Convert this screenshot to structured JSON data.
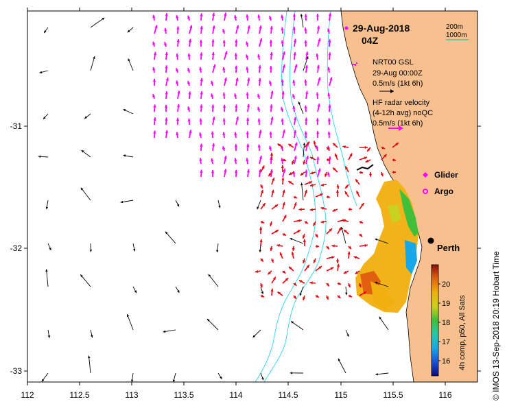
{
  "map": {
    "date": "29-Aug-2018",
    "time": "04Z",
    "scale_bar": {
      "short": "200m",
      "long": "1000m"
    },
    "legend": {
      "model_name": "NRT00 GSL",
      "model_time": "29-Aug 00:00Z",
      "model_scale": "0.5m/s (1kt 6h)",
      "radar_line1": "HF radar velocity",
      "radar_line2": "(4-12h avg) noQC",
      "radar_scale": "0.5m/s (1kt 6h)",
      "glider": "Glider",
      "argo": "Argo"
    },
    "city": "Perth",
    "credit": "© IMOS 13-Sep-2018 20:19 Hobart Time",
    "colorbar": {
      "title": "4h comp, p50, All Sats",
      "ticks": [
        "20",
        "19",
        "18",
        "17",
        "16"
      ]
    },
    "x_ticks": [
      "112",
      "112.5",
      "113",
      "113.5",
      "114",
      "114.5",
      "115",
      "115.5",
      "116"
    ],
    "y_ticks": [
      "-31",
      "-32",
      "-33"
    ],
    "colors": {
      "land": "#f7c08e",
      "model_arrow": "#000000",
      "radar_arrow": "#ff00ff",
      "hf_arrow": "#e8000b",
      "isobath": "#2ad4e8",
      "scale_line": "#2ad4a0"
    }
  }
}
